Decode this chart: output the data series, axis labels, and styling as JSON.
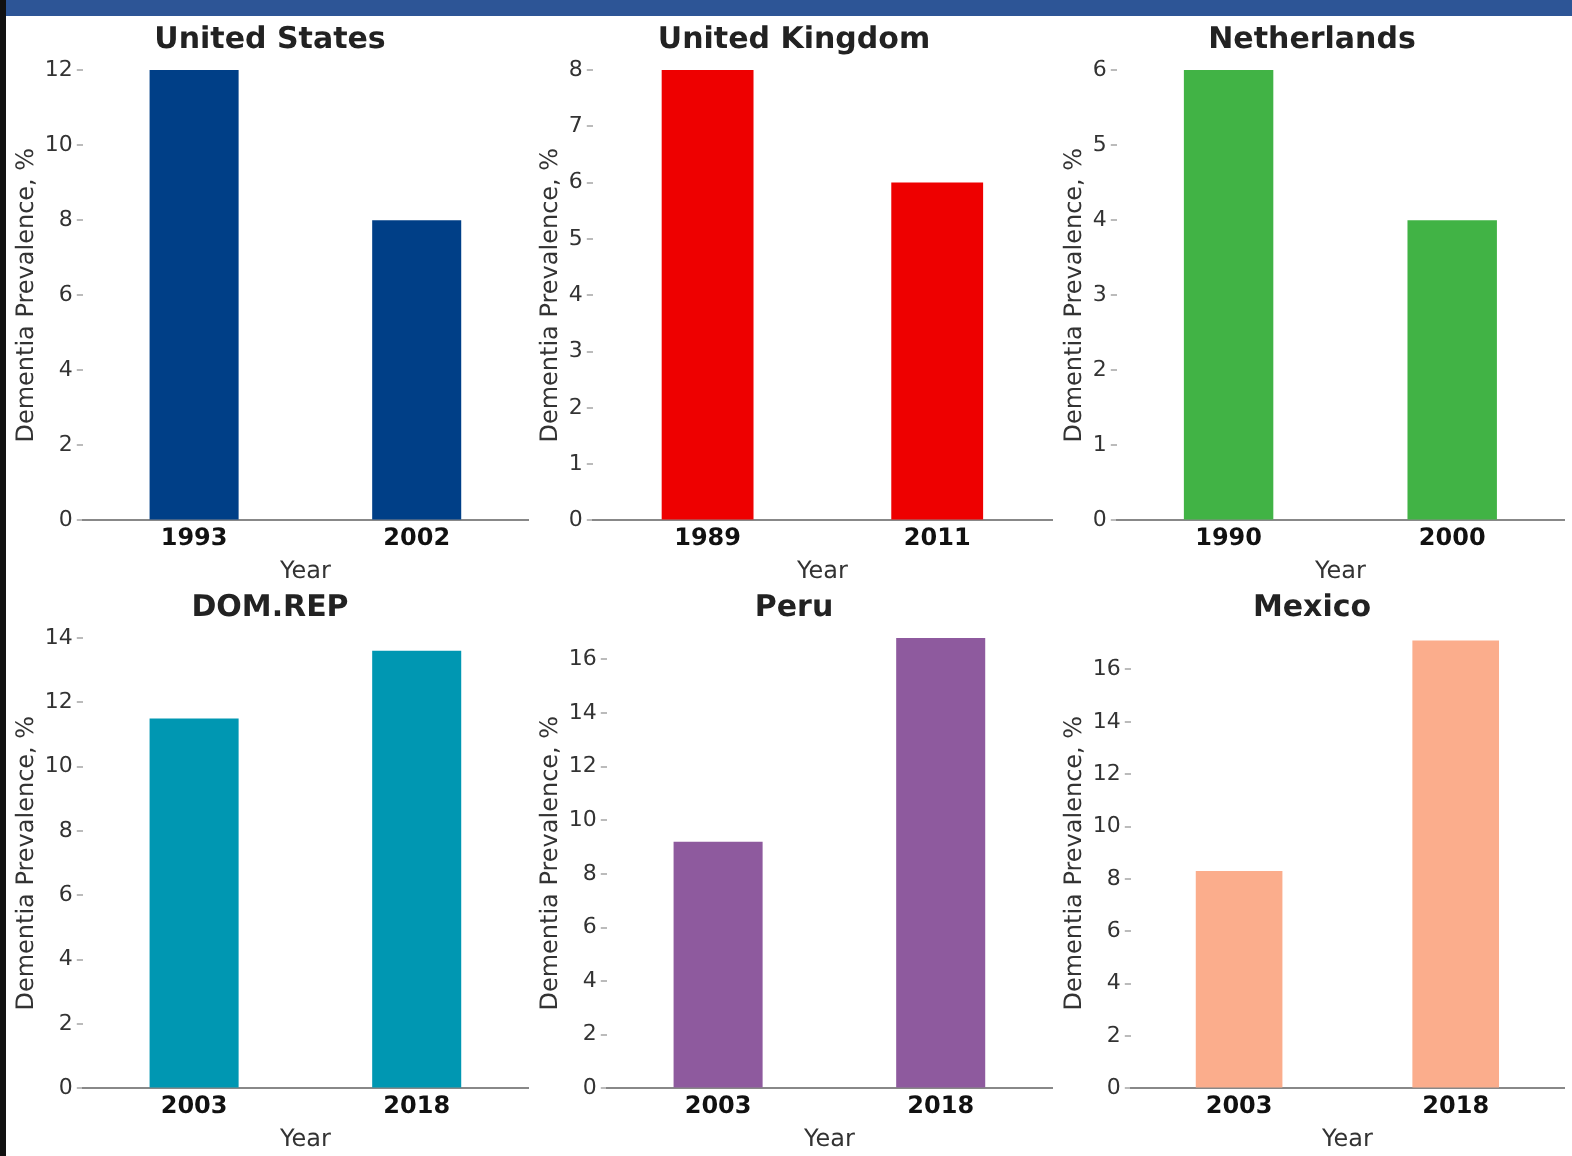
{
  "chart_data": [
    {
      "type": "bar",
      "title": "United States",
      "xlabel": "Year",
      "ylabel": "Dementia Prevalence, %",
      "categories": [
        "1993",
        "2002"
      ],
      "values": [
        12,
        8
      ],
      "color": "#003f87",
      "ylim": [
        0,
        12
      ],
      "yticks": [
        0,
        2,
        4,
        6,
        8,
        10,
        12
      ]
    },
    {
      "type": "bar",
      "title": "United Kingdom",
      "xlabel": "Year",
      "ylabel": "Dementia Prevalence, %",
      "categories": [
        "1989",
        "2011"
      ],
      "values": [
        8,
        6
      ],
      "color": "#ee0000",
      "ylim": [
        0,
        8
      ],
      "yticks": [
        0,
        1,
        2,
        3,
        4,
        5,
        6,
        7,
        8
      ]
    },
    {
      "type": "bar",
      "title": "Netherlands",
      "xlabel": "Year",
      "ylabel": "Dementia Prevalence, %",
      "categories": [
        "1990",
        "2000"
      ],
      "values": [
        6,
        4
      ],
      "color": "#41b345",
      "ylim": [
        0,
        6
      ],
      "yticks": [
        0,
        1,
        2,
        3,
        4,
        5,
        6
      ]
    },
    {
      "type": "bar",
      "title": "DOM.REP",
      "xlabel": "Year",
      "ylabel": "Dementia Prevalence, %",
      "categories": [
        "2003",
        "2018"
      ],
      "values": [
        11.5,
        13.6
      ],
      "color": "#0097b2",
      "ylim": [
        0,
        14
      ],
      "yticks": [
        0,
        2,
        4,
        6,
        8,
        10,
        12,
        14
      ]
    },
    {
      "type": "bar",
      "title": "Peru",
      "xlabel": "Year",
      "ylabel": "Dementia Prevalence, %",
      "categories": [
        "2003",
        "2018"
      ],
      "values": [
        9.2,
        16.8
      ],
      "color": "#8e5a9e",
      "ylim": [
        0,
        16.8
      ],
      "yticks": [
        0,
        2,
        4,
        6,
        8,
        10,
        12,
        14,
        16
      ]
    },
    {
      "type": "bar",
      "title": "Mexico",
      "xlabel": "Year",
      "ylabel": "Dementia Prevalence, %",
      "categories": [
        "2003",
        "2018"
      ],
      "values": [
        8.3,
        17.1
      ],
      "color": "#fbad8c",
      "ylim": [
        0,
        17.2
      ],
      "yticks": [
        0,
        2,
        4,
        6,
        8,
        10,
        12,
        14,
        16
      ]
    }
  ]
}
